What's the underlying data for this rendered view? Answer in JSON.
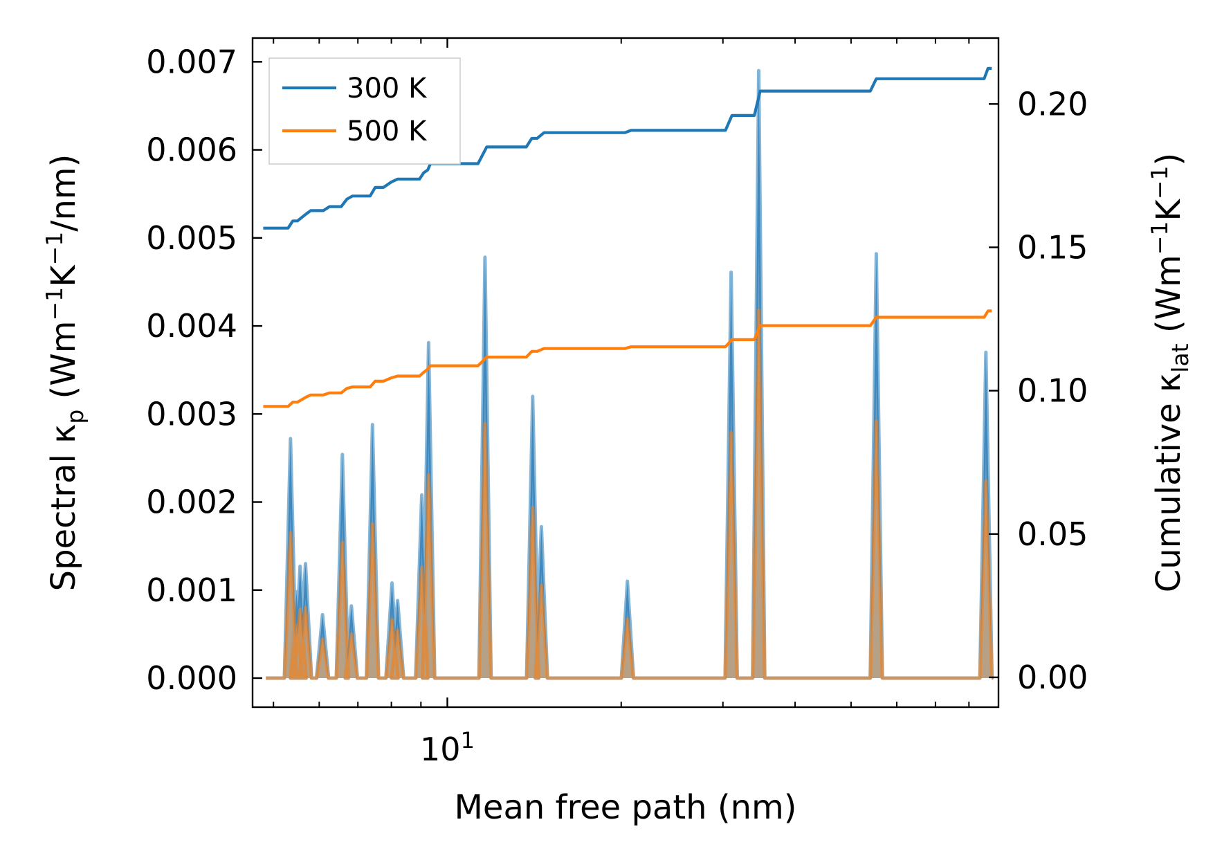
{
  "chart_data": {
    "type": "line",
    "x_scale": "log",
    "xlabel": "Mean free path (nm)",
    "xlim": [
      4.6,
      90
    ],
    "x_major_ticks": [
      10
    ],
    "x_major_tick_labels": [
      {
        "base": "10",
        "exp": "1"
      }
    ],
    "x_minor_ticks": [
      5,
      6,
      7,
      8,
      9,
      20,
      30,
      40,
      50,
      60,
      70,
      80,
      90
    ],
    "left_axis": {
      "ylabel": {
        "prefix": "Spectral κ",
        "sub": "p",
        "unit": " (Wm",
        "e1": "−1",
        "k": "K",
        "e2": "−1",
        "tail": "/nm)"
      },
      "ylim": [
        -0.00033,
        0.00727
      ],
      "ticks": [
        0.0,
        0.001,
        0.002,
        0.003,
        0.004,
        0.005,
        0.006,
        0.007
      ],
      "tick_labels": [
        "0.000",
        "0.001",
        "0.002",
        "0.003",
        "0.004",
        "0.005",
        "0.006",
        "0.007"
      ]
    },
    "right_axis": {
      "ylabel": {
        "prefix": "Cumulative κ",
        "sub": "lat",
        "unit": " (Wm",
        "e1": "−1",
        "k": "K",
        "e2": "−1",
        "tail": ")"
      },
      "ylim": [
        -0.0104,
        0.223
      ],
      "ticks": [
        0.0,
        0.05,
        0.1,
        0.15,
        0.2
      ],
      "tick_labels": [
        "0.00",
        "0.05",
        "0.10",
        "0.15",
        "0.20"
      ]
    },
    "spectral_peaks": [
      {
        "x": 5.35,
        "k300": 0.00272,
        "k500": 0.00165
      },
      {
        "x": 5.48,
        "k300": 0.00098,
        "k500": 0.0006
      },
      {
        "x": 5.56,
        "k300": 0.00127,
        "k500": 0.00078
      },
      {
        "x": 5.68,
        "k300": 0.0013,
        "k500": 0.0008
      },
      {
        "x": 6.08,
        "k300": 0.00072,
        "k500": 0.00044
      },
      {
        "x": 6.58,
        "k300": 0.00254,
        "k500": 0.00154
      },
      {
        "x": 6.82,
        "k300": 0.00082,
        "k500": 0.0005
      },
      {
        "x": 7.42,
        "k300": 0.00288,
        "k500": 0.00175
      },
      {
        "x": 8.02,
        "k300": 0.00108,
        "k500": 0.00066
      },
      {
        "x": 8.2,
        "k300": 0.00088,
        "k500": 0.00054
      },
      {
        "x": 9.03,
        "k300": 0.00208,
        "k500": 0.00126
      },
      {
        "x": 9.28,
        "k300": 0.00381,
        "k500": 0.00231
      },
      {
        "x": 11.62,
        "k300": 0.00478,
        "k500": 0.00289
      },
      {
        "x": 14.05,
        "k300": 0.0032,
        "k500": 0.00194
      },
      {
        "x": 14.55,
        "k300": 0.00172,
        "k500": 0.00105
      },
      {
        "x": 20.5,
        "k300": 0.0011,
        "k500": 0.00067
      },
      {
        "x": 31.0,
        "k300": 0.00461,
        "k500": 0.00279
      },
      {
        "x": 34.6,
        "k300": 0.0069,
        "k500": 0.00418
      },
      {
        "x": 55.3,
        "k300": 0.00482,
        "k500": 0.00292
      },
      {
        "x": 85.6,
        "k300": 0.0037,
        "k500": 0.00224
      }
    ],
    "series": [
      {
        "name": "300 K",
        "color": "#1f77b4",
        "fill_color": "#4f8fbf",
        "cumulative_points": [
          [
            4.8,
            0.1567
          ],
          [
            5.3,
            0.1567
          ],
          [
            5.4,
            0.1592
          ],
          [
            5.5,
            0.1592
          ],
          [
            5.7,
            0.1617
          ],
          [
            5.8,
            0.1628
          ],
          [
            6.1,
            0.1628
          ],
          [
            6.25,
            0.1642
          ],
          [
            6.55,
            0.1642
          ],
          [
            6.7,
            0.1668
          ],
          [
            6.85,
            0.1679
          ],
          [
            7.35,
            0.1679
          ],
          [
            7.5,
            0.1709
          ],
          [
            7.75,
            0.1709
          ],
          [
            8.0,
            0.1728
          ],
          [
            8.2,
            0.1738
          ],
          [
            8.95,
            0.1738
          ],
          [
            9.1,
            0.176
          ],
          [
            9.25,
            0.177
          ],
          [
            9.35,
            0.1792
          ],
          [
            11.3,
            0.1792
          ],
          [
            11.7,
            0.185
          ],
          [
            13.7,
            0.185
          ],
          [
            14.0,
            0.188
          ],
          [
            14.3,
            0.188
          ],
          [
            14.7,
            0.19
          ],
          [
            20.3,
            0.19
          ],
          [
            20.8,
            0.1908
          ],
          [
            30.3,
            0.1908
          ],
          [
            31.1,
            0.196
          ],
          [
            34.0,
            0.196
          ],
          [
            34.8,
            0.2045
          ],
          [
            54.0,
            0.2045
          ],
          [
            55.3,
            0.2088
          ],
          [
            85.0,
            0.2088
          ],
          [
            86.3,
            0.2124
          ],
          [
            87.6,
            0.2124
          ]
        ]
      },
      {
        "name": "500 K",
        "color": "#ff7f0e",
        "fill_color": "#c4a07a",
        "cumulative_points": [
          [
            4.8,
            0.0945
          ],
          [
            5.3,
            0.0945
          ],
          [
            5.4,
            0.096
          ],
          [
            5.5,
            0.096
          ],
          [
            5.7,
            0.0978
          ],
          [
            5.8,
            0.0985
          ],
          [
            6.1,
            0.0985
          ],
          [
            6.25,
            0.0992
          ],
          [
            6.55,
            0.0992
          ],
          [
            6.7,
            0.1008
          ],
          [
            6.85,
            0.1013
          ],
          [
            7.35,
            0.1013
          ],
          [
            7.5,
            0.1033
          ],
          [
            7.75,
            0.1033
          ],
          [
            8.0,
            0.1045
          ],
          [
            8.2,
            0.1051
          ],
          [
            8.95,
            0.1051
          ],
          [
            9.1,
            0.1064
          ],
          [
            9.25,
            0.1075
          ],
          [
            9.35,
            0.1087
          ],
          [
            11.3,
            0.1087
          ],
          [
            11.7,
            0.1117
          ],
          [
            13.7,
            0.1117
          ],
          [
            14.0,
            0.1137
          ],
          [
            14.3,
            0.1137
          ],
          [
            14.7,
            0.1147
          ],
          [
            20.3,
            0.1147
          ],
          [
            20.8,
            0.1153
          ],
          [
            30.3,
            0.1153
          ],
          [
            31.1,
            0.1178
          ],
          [
            34.0,
            0.1178
          ],
          [
            34.8,
            0.1227
          ],
          [
            54.0,
            0.1227
          ],
          [
            55.3,
            0.1256
          ],
          [
            85.0,
            0.1256
          ],
          [
            86.3,
            0.1278
          ],
          [
            87.6,
            0.1278
          ]
        ]
      }
    ],
    "legend": {
      "location": "upper-left",
      "entries": [
        "300 K",
        "500 K"
      ]
    }
  }
}
